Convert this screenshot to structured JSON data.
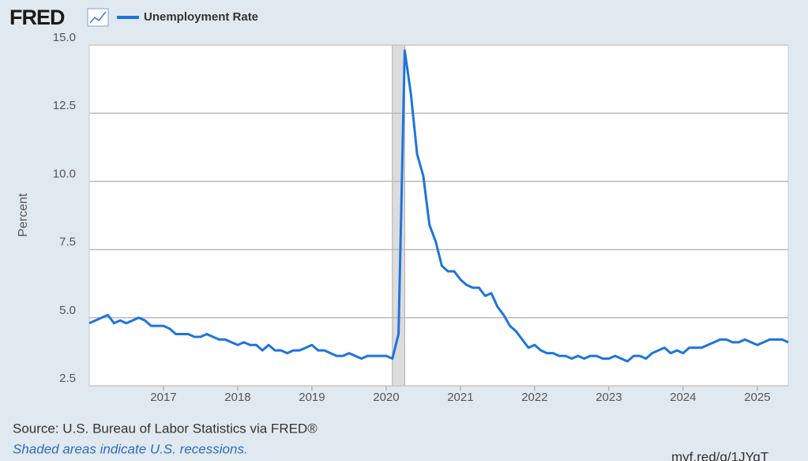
{
  "header": {
    "logo": "FRED"
  },
  "chart_data": {
    "type": "line",
    "y_label": "Percent",
    "x": [
      "2016-01",
      "2016-02",
      "2016-03",
      "2016-04",
      "2016-05",
      "2016-06",
      "2016-07",
      "2016-08",
      "2016-09",
      "2016-10",
      "2016-11",
      "2016-12",
      "2017-01",
      "2017-02",
      "2017-03",
      "2017-04",
      "2017-05",
      "2017-06",
      "2017-07",
      "2017-08",
      "2017-09",
      "2017-10",
      "2017-11",
      "2017-12",
      "2018-01",
      "2018-02",
      "2018-03",
      "2018-04",
      "2018-05",
      "2018-06",
      "2018-07",
      "2018-08",
      "2018-09",
      "2018-10",
      "2018-11",
      "2018-12",
      "2019-01",
      "2019-02",
      "2019-03",
      "2019-04",
      "2019-05",
      "2019-06",
      "2019-07",
      "2019-08",
      "2019-09",
      "2019-10",
      "2019-11",
      "2019-12",
      "2020-01",
      "2020-02",
      "2020-03",
      "2020-04",
      "2020-05",
      "2020-06",
      "2020-07",
      "2020-08",
      "2020-09",
      "2020-10",
      "2020-11",
      "2020-12",
      "2021-01",
      "2021-02",
      "2021-03",
      "2021-04",
      "2021-05",
      "2021-06",
      "2021-07",
      "2021-08",
      "2021-09",
      "2021-10",
      "2021-11",
      "2021-12",
      "2022-01",
      "2022-02",
      "2022-03",
      "2022-04",
      "2022-05",
      "2022-06",
      "2022-07",
      "2022-08",
      "2022-09",
      "2022-10",
      "2022-11",
      "2022-12",
      "2023-01",
      "2023-02",
      "2023-03",
      "2023-04",
      "2023-05",
      "2023-06",
      "2023-07",
      "2023-08",
      "2023-09",
      "2023-10",
      "2023-11",
      "2023-12",
      "2024-01",
      "2024-02",
      "2024-03",
      "2024-04",
      "2024-05",
      "2024-06",
      "2024-07",
      "2024-08",
      "2024-09",
      "2024-10",
      "2024-11",
      "2024-12",
      "2025-01",
      "2025-02",
      "2025-03",
      "2025-04",
      "2025-05",
      "2025-06"
    ],
    "series": [
      {
        "name": "Unemployment Rate",
        "color": "#1f74dd",
        "values": [
          4.8,
          4.9,
          5.0,
          5.1,
          4.8,
          4.9,
          4.8,
          4.9,
          5.0,
          4.9,
          4.7,
          4.7,
          4.7,
          4.6,
          4.4,
          4.4,
          4.4,
          4.3,
          4.3,
          4.4,
          4.3,
          4.2,
          4.2,
          4.1,
          4.0,
          4.1,
          4.0,
          4.0,
          3.8,
          4.0,
          3.8,
          3.8,
          3.7,
          3.8,
          3.8,
          3.9,
          4.0,
          3.8,
          3.8,
          3.7,
          3.6,
          3.6,
          3.7,
          3.6,
          3.5,
          3.6,
          3.6,
          3.6,
          3.6,
          3.5,
          4.4,
          14.8,
          13.2,
          11.0,
          10.2,
          8.4,
          7.8,
          6.9,
          6.7,
          6.7,
          6.4,
          6.2,
          6.1,
          6.1,
          5.8,
          5.9,
          5.4,
          5.1,
          4.7,
          4.5,
          4.2,
          3.9,
          4.0,
          3.8,
          3.7,
          3.7,
          3.6,
          3.6,
          3.5,
          3.6,
          3.5,
          3.6,
          3.6,
          3.5,
          3.5,
          3.6,
          3.5,
          3.4,
          3.6,
          3.6,
          3.5,
          3.7,
          3.8,
          3.9,
          3.7,
          3.8,
          3.7,
          3.9,
          3.9,
          3.9,
          4.0,
          4.1,
          4.2,
          4.2,
          4.1,
          4.1,
          4.2,
          4.1,
          4.0,
          4.1,
          4.2,
          4.2,
          4.2,
          4.1
        ]
      }
    ],
    "recessions": [
      [
        "2020-02",
        "2020-04"
      ]
    ],
    "recession_color": "#dcdcdc",
    "xlim": [
      "2016-01",
      "2025-06"
    ],
    "xticks": [
      {
        "value": "2017-01",
        "label": "2017"
      },
      {
        "value": "2018-01",
        "label": "2018"
      },
      {
        "value": "2019-01",
        "label": "2019"
      },
      {
        "value": "2020-01",
        "label": "2020"
      },
      {
        "value": "2021-01",
        "label": "2021"
      },
      {
        "value": "2022-01",
        "label": "2022"
      },
      {
        "value": "2023-01",
        "label": "2023"
      },
      {
        "value": "2024-01",
        "label": "2024"
      },
      {
        "value": "2025-01",
        "label": "2025"
      }
    ],
    "ylim": [
      2.5,
      15
    ],
    "yticks": [
      {
        "value": 2.5,
        "label": "2.5"
      },
      {
        "value": 5,
        "label": "5.0"
      },
      {
        "value": 7.5,
        "label": "7.5"
      },
      {
        "value": 10,
        "label": "10.0"
      },
      {
        "value": 12.5,
        "label": "12.5"
      },
      {
        "value": 15,
        "label": "15.0"
      }
    ],
    "grid": true
  },
  "footer": {
    "source": "Source: U.S. Bureau of Labor Statistics via FRED®",
    "note": "Shaded areas indicate U.S. recessions.",
    "link": "myf.red/g/1JYqT"
  }
}
